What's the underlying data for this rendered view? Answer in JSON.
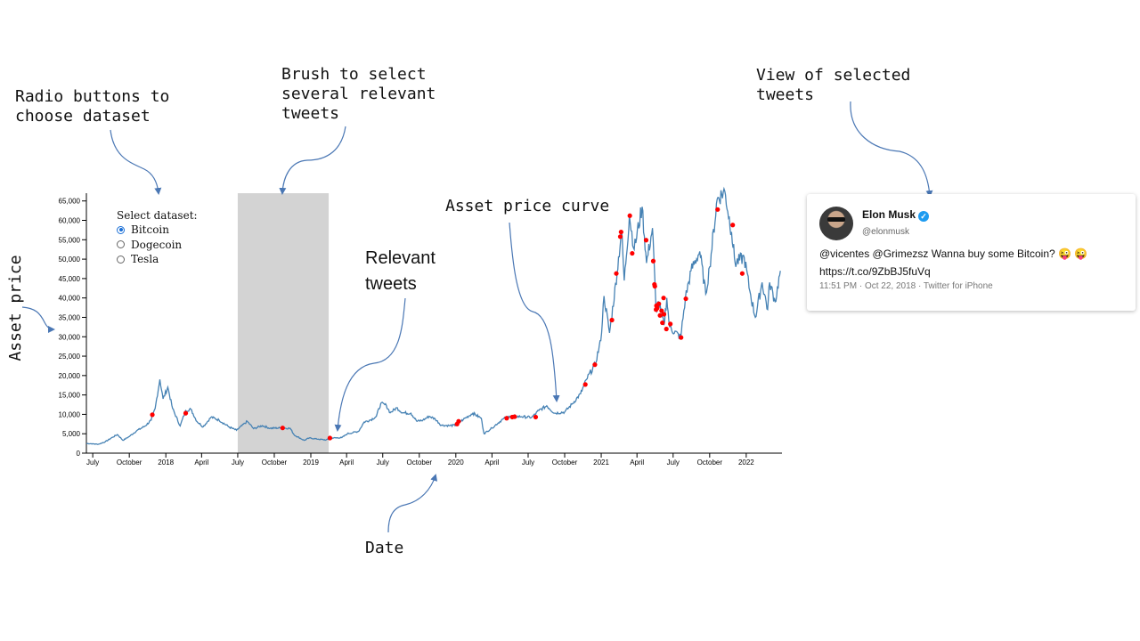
{
  "annotations": {
    "radio": "Radio buttons to\nchoose dataset",
    "brush": "Brush to select\nseveral relevant\ntweets",
    "view": "View of selected\ntweets",
    "asset_curve": "Asset price curve",
    "relevant": "Relevant\ntweets",
    "asset_price": "Asset price",
    "date": "Date"
  },
  "radio_panel": {
    "title": "Select dataset:",
    "options": [
      {
        "label": "Bitcoin",
        "checked": true
      },
      {
        "label": "Dogecoin",
        "checked": false
      },
      {
        "label": "Tesla",
        "checked": false
      }
    ]
  },
  "tweet": {
    "name": "Elon Musk",
    "handle": "@elonmusk",
    "text": "@vicentes @Grimezsz Wanna buy some Bitcoin? 😜 😜\nhttps://t.co/9ZbBJ5fuVq",
    "meta": "11:51 PM · Oct 22, 2018 · Twitter for iPhone",
    "verified_icon": "checkmark-badge-icon",
    "avatar_icon": "user-avatar-icon"
  },
  "colors": {
    "line": "#4682b4",
    "tweet_dot": "#ff0000",
    "brush": "#d3d3d3",
    "arrow": "#4a77b4"
  },
  "chart_data": {
    "type": "line",
    "title": "",
    "xlabel": "Date",
    "ylabel": "Asset price",
    "xlim": [
      "2017-06-15",
      "2022-04-01"
    ],
    "ylim": [
      0,
      67000
    ],
    "yticks": [
      0,
      5000,
      10000,
      15000,
      20000,
      25000,
      30000,
      35000,
      40000,
      45000,
      50000,
      55000,
      60000,
      65000
    ],
    "ytick_labels": [
      "0",
      "5,000",
      "10,000",
      "15,000",
      "20,000",
      "25,000",
      "30,000",
      "35,000",
      "40,000",
      "45,000",
      "50,000",
      "55,000",
      "60,000",
      "65,000"
    ],
    "xticks": [
      {
        "date": "2017-07-01",
        "label": "July"
      },
      {
        "date": "2017-10-01",
        "label": "October"
      },
      {
        "date": "2018-01-01",
        "label": "2018"
      },
      {
        "date": "2018-04-01",
        "label": "April"
      },
      {
        "date": "2018-07-01",
        "label": "July"
      },
      {
        "date": "2018-10-01",
        "label": "October"
      },
      {
        "date": "2019-01-01",
        "label": "2019"
      },
      {
        "date": "2019-04-01",
        "label": "April"
      },
      {
        "date": "2019-07-01",
        "label": "July"
      },
      {
        "date": "2019-10-01",
        "label": "October"
      },
      {
        "date": "2020-01-01",
        "label": "2020"
      },
      {
        "date": "2020-04-01",
        "label": "April"
      },
      {
        "date": "2020-07-01",
        "label": "July"
      },
      {
        "date": "2020-10-01",
        "label": "October"
      },
      {
        "date": "2021-01-01",
        "label": "2021"
      },
      {
        "date": "2021-04-01",
        "label": "April"
      },
      {
        "date": "2021-07-01",
        "label": "July"
      },
      {
        "date": "2021-10-01",
        "label": "October"
      },
      {
        "date": "2022-01-01",
        "label": "2022"
      }
    ],
    "grid": false,
    "brush": {
      "start": "2018-07-01",
      "end": "2019-02-15"
    },
    "series": [
      {
        "values": [
          [
            "2017-06-15",
            2500
          ],
          [
            "2017-07-15",
            2300
          ],
          [
            "2017-08-01",
            2900
          ],
          [
            "2017-08-20",
            4100
          ],
          [
            "2017-09-01",
            4800
          ],
          [
            "2017-09-15",
            3300
          ],
          [
            "2017-10-01",
            4300
          ],
          [
            "2017-10-20",
            5800
          ],
          [
            "2017-11-10",
            7000
          ],
          [
            "2017-11-25",
            8500
          ],
          [
            "2017-12-05",
            11500
          ],
          [
            "2017-12-17",
            19000
          ],
          [
            "2017-12-25",
            14000
          ],
          [
            "2018-01-06",
            17000
          ],
          [
            "2018-01-18",
            11500
          ],
          [
            "2018-02-06",
            7000
          ],
          [
            "2018-02-20",
            11000
          ],
          [
            "2018-03-05",
            11300
          ],
          [
            "2018-03-20",
            8200
          ],
          [
            "2018-04-05",
            6800
          ],
          [
            "2018-04-25",
            9300
          ],
          [
            "2018-05-15",
            8500
          ],
          [
            "2018-06-10",
            6700
          ],
          [
            "2018-06-28",
            5900
          ],
          [
            "2018-07-25",
            8200
          ],
          [
            "2018-08-10",
            6300
          ],
          [
            "2018-09-01",
            7100
          ],
          [
            "2018-09-20",
            6400
          ],
          [
            "2018-10-15",
            6500
          ],
          [
            "2018-11-10",
            6400
          ],
          [
            "2018-11-20",
            4700
          ],
          [
            "2018-12-15",
            3300
          ],
          [
            "2018-12-28",
            3900
          ],
          [
            "2019-01-20",
            3600
          ],
          [
            "2019-02-08",
            3400
          ],
          [
            "2019-02-25",
            3900
          ],
          [
            "2019-03-20",
            4000
          ],
          [
            "2019-04-03",
            5000
          ],
          [
            "2019-05-01",
            5600
          ],
          [
            "2019-05-15",
            8000
          ],
          [
            "2019-06-01",
            8600
          ],
          [
            "2019-06-15",
            9500
          ],
          [
            "2019-06-26",
            12800
          ],
          [
            "2019-07-10",
            12300
          ],
          [
            "2019-07-20",
            10400
          ],
          [
            "2019-08-05",
            11700
          ],
          [
            "2019-08-20",
            10400
          ],
          [
            "2019-09-10",
            10300
          ],
          [
            "2019-09-25",
            8200
          ],
          [
            "2019-10-10",
            8500
          ],
          [
            "2019-10-26",
            9500
          ],
          [
            "2019-11-10",
            8800
          ],
          [
            "2019-11-25",
            7200
          ],
          [
            "2019-12-15",
            7100
          ],
          [
            "2020-01-01",
            7200
          ],
          [
            "2020-01-20",
            8700
          ],
          [
            "2020-02-13",
            10300
          ],
          [
            "2020-03-05",
            9000
          ],
          [
            "2020-03-12",
            5000
          ],
          [
            "2020-04-01",
            6500
          ],
          [
            "2020-04-29",
            8800
          ],
          [
            "2020-05-15",
            9500
          ],
          [
            "2020-06-15",
            9400
          ],
          [
            "2020-07-10",
            9200
          ],
          [
            "2020-07-28",
            11000
          ],
          [
            "2020-08-17",
            12200
          ],
          [
            "2020-09-05",
            10300
          ],
          [
            "2020-10-01",
            10600
          ],
          [
            "2020-10-21",
            12800
          ],
          [
            "2020-11-10",
            15300
          ],
          [
            "2020-11-25",
            19000
          ],
          [
            "2020-12-17",
            23000
          ],
          [
            "2020-12-31",
            29000
          ],
          [
            "2021-01-08",
            40500
          ],
          [
            "2021-01-22",
            31000
          ],
          [
            "2021-02-10",
            46500
          ],
          [
            "2021-02-21",
            57500
          ],
          [
            "2021-02-28",
            44500
          ],
          [
            "2021-03-13",
            61200
          ],
          [
            "2021-03-25",
            52500
          ],
          [
            "2021-04-14",
            63500
          ],
          [
            "2021-04-25",
            49000
          ],
          [
            "2021-05-10",
            58000
          ],
          [
            "2021-05-19",
            37000
          ],
          [
            "2021-05-25",
            39000
          ],
          [
            "2021-06-08",
            33000
          ],
          [
            "2021-06-15",
            40000
          ],
          [
            "2021-06-22",
            32500
          ],
          [
            "2021-07-20",
            29800
          ],
          [
            "2021-08-01",
            40000
          ],
          [
            "2021-08-15",
            47000
          ],
          [
            "2021-09-06",
            52000
          ],
          [
            "2021-09-21",
            41000
          ],
          [
            "2021-10-01",
            48000
          ],
          [
            "2021-10-20",
            65500
          ],
          [
            "2021-11-08",
            67500
          ],
          [
            "2021-11-25",
            57000
          ],
          [
            "2021-12-04",
            49000
          ],
          [
            "2021-12-27",
            50500
          ],
          [
            "2022-01-10",
            41800
          ],
          [
            "2022-01-24",
            35000
          ],
          [
            "2022-02-10",
            44000
          ],
          [
            "2022-02-24",
            37000
          ],
          [
            "2022-03-01",
            44000
          ],
          [
            "2022-03-15",
            39000
          ],
          [
            "2022-03-28",
            47000
          ]
        ]
      }
    ],
    "tweet_points": [
      [
        "2017-11-28",
        9900
      ],
      [
        "2018-02-20",
        10300
      ],
      [
        "2018-10-22",
        6500
      ],
      [
        "2019-02-18",
        3900
      ],
      [
        "2020-01-04",
        7500
      ],
      [
        "2020-01-08",
        8200
      ],
      [
        "2020-05-08",
        9000
      ],
      [
        "2020-05-22",
        9300
      ],
      [
        "2020-05-28",
        9400
      ],
      [
        "2020-07-20",
        9300
      ],
      [
        "2020-11-22",
        17700
      ],
      [
        "2020-12-16",
        22800
      ],
      [
        "2021-01-28",
        34300
      ],
      [
        "2021-02-08",
        46300
      ],
      [
        "2021-02-18",
        55800
      ],
      [
        "2021-02-20",
        57000
      ],
      [
        "2021-03-14",
        61200
      ],
      [
        "2021-03-20",
        51500
      ],
      [
        "2021-04-24",
        54900
      ],
      [
        "2021-05-12",
        49500
      ],
      [
        "2021-05-15",
        43500
      ],
      [
        "2021-05-16",
        43000
      ],
      [
        "2021-05-19",
        37000
      ],
      [
        "2021-05-20",
        38000
      ],
      [
        "2021-05-22",
        37400
      ],
      [
        "2021-05-26",
        38500
      ],
      [
        "2021-05-29",
        35500
      ],
      [
        "2021-06-02",
        36700
      ],
      [
        "2021-06-04",
        33600
      ],
      [
        "2021-06-07",
        40000
      ],
      [
        "2021-06-08",
        35800
      ],
      [
        "2021-06-14",
        32000
      ],
      [
        "2021-06-24",
        33300
      ],
      [
        "2021-07-21",
        29800
      ],
      [
        "2021-08-02",
        39800
      ],
      [
        "2021-10-21",
        62800
      ],
      [
        "2021-11-28",
        58800
      ],
      [
        "2021-12-22",
        46300
      ]
    ]
  }
}
